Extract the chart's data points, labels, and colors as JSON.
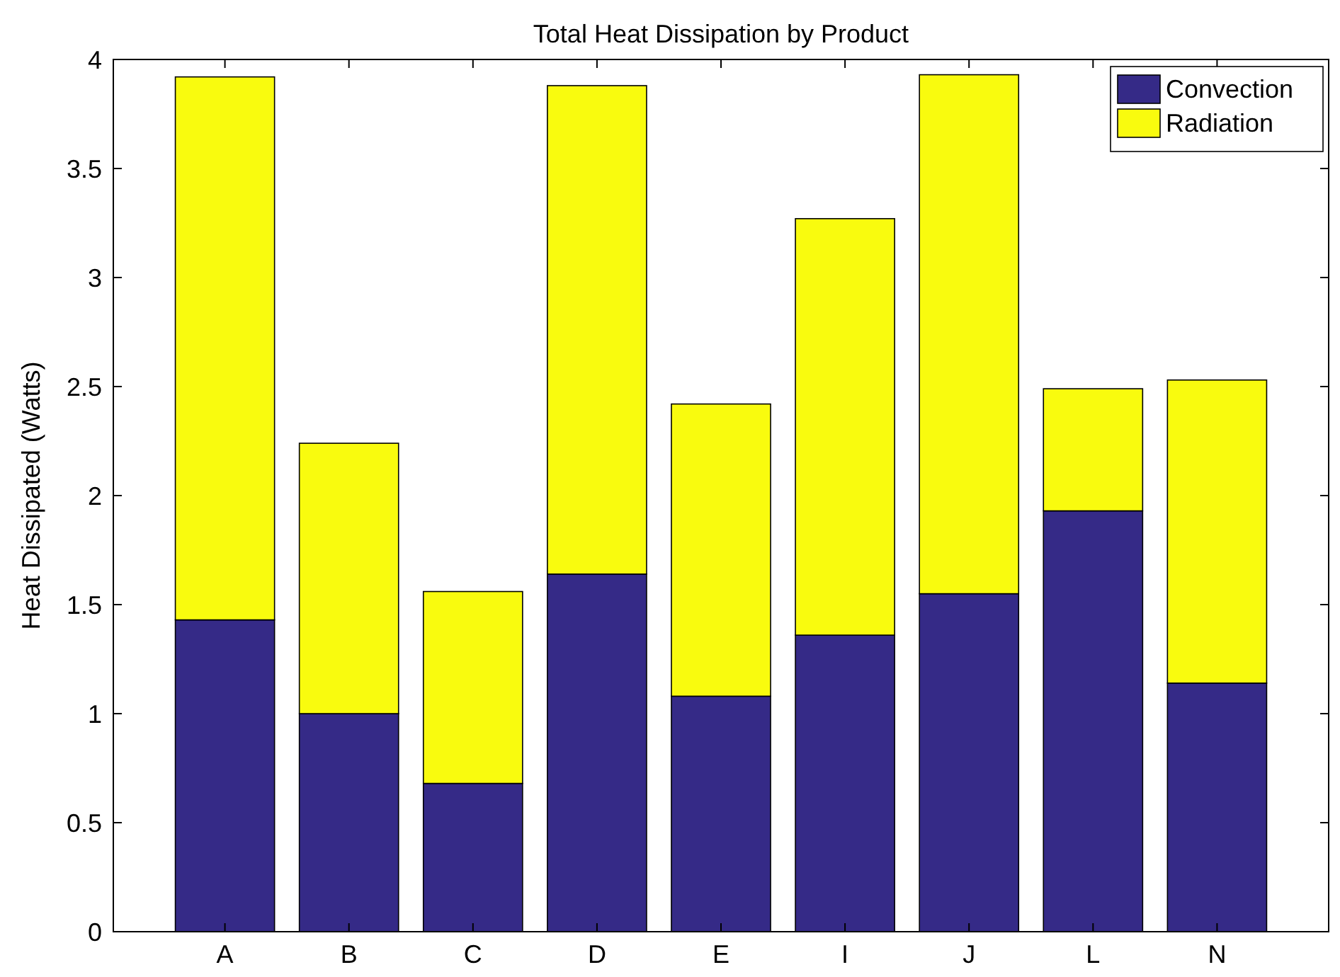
{
  "chart_data": {
    "type": "bar",
    "title": "Total Heat Dissipation by Product",
    "ylabel": "Heat Dissipated (Watts)",
    "categories": [
      "A",
      "B",
      "C",
      "D",
      "E",
      "I",
      "J",
      "L",
      "N"
    ],
    "stacked": true,
    "legend": "top right",
    "grid": false,
    "ylim": [
      0,
      4
    ],
    "yticks": [
      0,
      0.5,
      1,
      1.5,
      2,
      2.5,
      3,
      3.5,
      4
    ],
    "series": [
      {
        "name": "Convection",
        "color": "#352a87",
        "values": [
          1.43,
          1.0,
          0.68,
          1.64,
          1.08,
          1.36,
          1.55,
          1.93,
          1.14
        ]
      },
      {
        "name": "Radiation",
        "color": "#f9fb0e",
        "values": [
          2.49,
          1.24,
          0.88,
          2.24,
          1.34,
          1.91,
          2.38,
          0.56,
          1.39
        ]
      }
    ]
  }
}
